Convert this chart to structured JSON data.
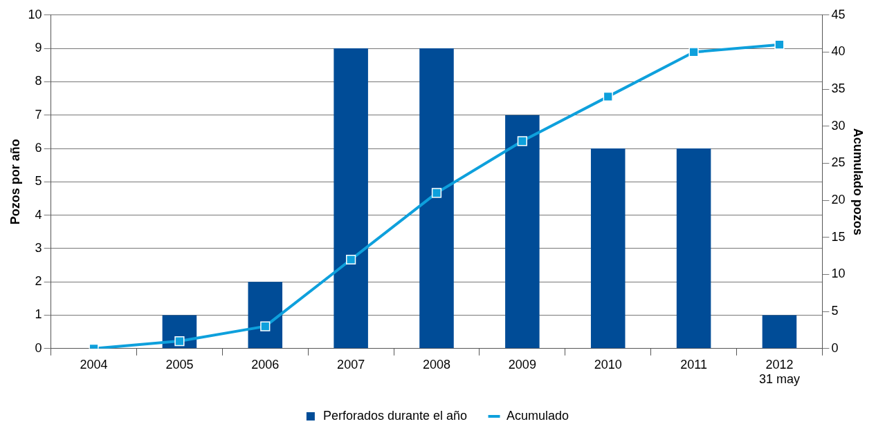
{
  "chart_data": {
    "type": "bar",
    "categories": [
      "2004",
      "2005",
      "2006",
      "2007",
      "2008",
      "2009",
      "2010",
      "2011",
      "2012\n31 may"
    ],
    "ylabel": "Pozos por año",
    "y2label": "Acumulado pozos",
    "series": [
      {
        "name": "Perforados durante el año",
        "color": "#004c97",
        "values": [
          0,
          1,
          2,
          9,
          9,
          7,
          6,
          6,
          1
        ]
      },
      {
        "name": "Acumulado",
        "type": "line",
        "axis": "y2",
        "color": "#0ea0dc",
        "values": [
          0,
          1,
          3,
          12,
          21,
          28,
          34,
          40,
          41
        ]
      }
    ],
    "ylim": [
      0,
      10
    ],
    "yticks": [
      0,
      1,
      2,
      3,
      4,
      5,
      6,
      7,
      8,
      9,
      10
    ],
    "y2lim": [
      0,
      45
    ],
    "y2ticks": [
      0,
      5,
      10,
      15,
      20,
      25,
      30,
      35,
      40,
      45
    ],
    "grid": "y",
    "legend": "bottom",
    "marker": "square",
    "line_style": "solid"
  }
}
